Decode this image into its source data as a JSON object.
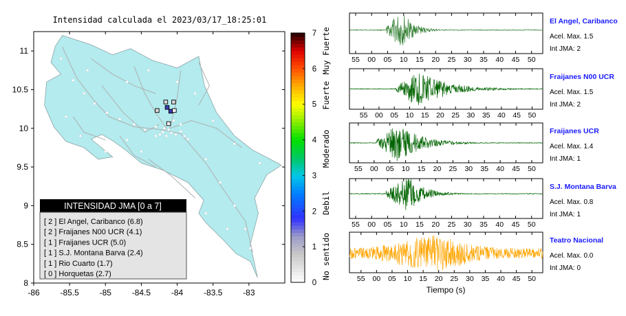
{
  "chart_data": [
    {
      "type": "scatter",
      "title": "Intensidad calculada el 2023/03/17_18:25:01",
      "xlim": [
        -86,
        -82.5
      ],
      "ylim": [
        8,
        11.25
      ],
      "x_ticks": [
        "-86",
        "-85.5",
        "-85",
        "-84.5",
        "-84",
        "-83.5",
        "-83"
      ],
      "y_ticks": [
        "8",
        "8.5",
        "9",
        "9.5",
        "10",
        "10.5",
        "11"
      ],
      "stations": [
        {
          "name": "El Angel, Caribanco",
          "lon": -84.09,
          "lat": 10.22,
          "jma": 2
        },
        {
          "name": "Fraijanes N00 UCR",
          "lon": -84.14,
          "lat": 10.27,
          "jma": 2
        },
        {
          "name": "Fraijanes UCR",
          "lon": -84.16,
          "lat": 10.34,
          "jma": 1
        },
        {
          "name": "S.J. Montana Barva",
          "lon": -84.28,
          "lat": 10.23,
          "jma": 1
        },
        {
          "name": "Rio Cuarto",
          "lon": -84.05,
          "lat": 10.34,
          "jma": 1
        },
        {
          "name": "Horquetas",
          "lon": -84.04,
          "lat": 10.23,
          "jma": 0
        },
        {
          "name": "",
          "lon": -84.12,
          "lat": 10.06,
          "jma": 0
        }
      ],
      "legend": {
        "title": "INTENSIDAD JMA [0 a 7]",
        "items": [
          "[ 2 ]  El Angel, Caribanco (6.8)",
          "[ 2 ]  Fraijanes N00 UCR (4.1)",
          "[ 1 ]  Fraijanes UCR (5.0)",
          "[ 1 ]  S.J. Montana Barva (2.4)",
          "[ 1 ]  Rio Cuarto (1.7)",
          "[ 0 ]  Horquetas (2.7)"
        ]
      },
      "colorbar": {
        "range": [
          0,
          7
        ],
        "ticks": [
          "0",
          "1",
          "2",
          "3",
          "4",
          "5",
          "6",
          "7"
        ],
        "categories": [
          "No sentido",
          "Debil",
          "Moderado",
          "Fuerte",
          "Muy Fuerte"
        ]
      }
    },
    {
      "type": "line",
      "xlabel": "Tiempo (s)",
      "x_ticks": [
        "55",
        "00",
        "05",
        "10",
        "15",
        "20",
        "25",
        "30",
        "35",
        "40",
        "45",
        "50"
      ],
      "traces": [
        {
          "name": "El Angel, Caribanco",
          "acel": "Acel. Max. 1.5",
          "jma": "Int JMA: 2",
          "color": "#2a7a2a",
          "onset": 0.19,
          "peak": 0.27,
          "decay": 0.06,
          "amp": 1.0
        },
        {
          "name": "Fraijanes N00 UCR",
          "acel": "Acel. Max. 1.5",
          "jma": "Int JMA: 2",
          "color": "#006400",
          "onset": 0.24,
          "peak": 0.36,
          "decay": 0.14,
          "amp": 1.0
        },
        {
          "name": "Fraijanes UCR",
          "acel": "Acel. Max. 1.4",
          "jma": "Int JMA: 1",
          "color": "#006400",
          "onset": 0.14,
          "peak": 0.25,
          "decay": 0.12,
          "amp": 1.0
        },
        {
          "name": "S.J. Montana Barva",
          "acel": "Acel. Max. 0.8",
          "jma": "Int JMA: 1",
          "color": "#006400",
          "onset": 0.19,
          "peak": 0.3,
          "decay": 0.08,
          "amp": 1.0
        },
        {
          "name": "Teatro Nacional",
          "acel": "Acel. Max. 0.0",
          "jma": "Int JMA: 0",
          "color": "#ffa500",
          "onset": 0.0,
          "peak": 0.42,
          "decay": 0.35,
          "amp": 0.95
        }
      ]
    }
  ]
}
